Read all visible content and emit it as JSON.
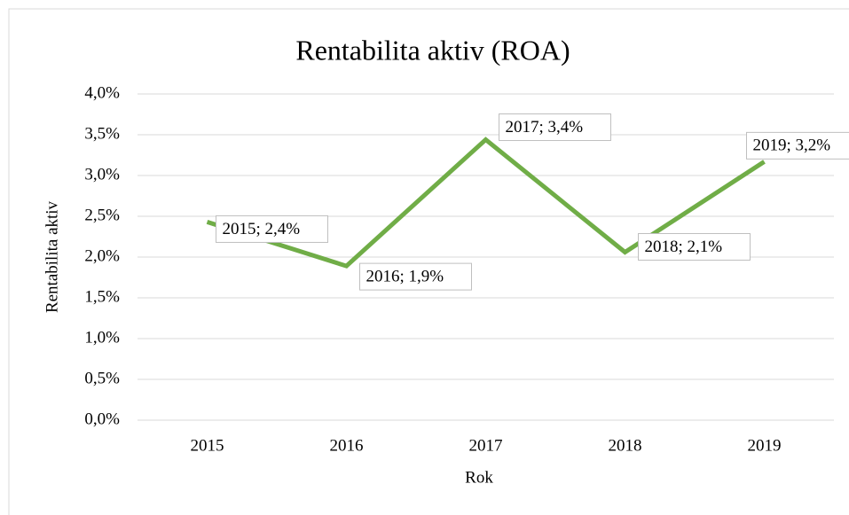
{
  "chart_data": {
    "type": "line",
    "title": "Rentabilita aktiv (ROA)",
    "x_label": "Rok",
    "y_label": "Rentabilita aktiv",
    "categories": [
      "2015",
      "2016",
      "2017",
      "2018",
      "2019"
    ],
    "series": [
      {
        "name": "Rentabilita aktiv",
        "color": "#70ad47",
        "values": [
          2.43,
          1.89,
          3.44,
          2.06,
          3.17
        ],
        "value_labels": [
          "2015; 2,4%",
          "2016; 1,9%",
          "2017; 3,4%",
          "2018; 2,1%",
          "2019; 3,2%"
        ]
      }
    ],
    "ylim": [
      0,
      4
    ],
    "yticks": [
      {
        "value": 0,
        "label": "0,0%"
      },
      {
        "value": 0.5,
        "label": "0,5%"
      },
      {
        "value": 1,
        "label": "1,0%"
      },
      {
        "value": 1.5,
        "label": "1,5%"
      },
      {
        "value": 2,
        "label": "2,0%"
      },
      {
        "value": 2.5,
        "label": "2,5%"
      },
      {
        "value": 3,
        "label": "3,0%"
      },
      {
        "value": 3.5,
        "label": "3,5%"
      },
      {
        "value": 4,
        "label": "4,0%"
      }
    ],
    "grid": true
  }
}
